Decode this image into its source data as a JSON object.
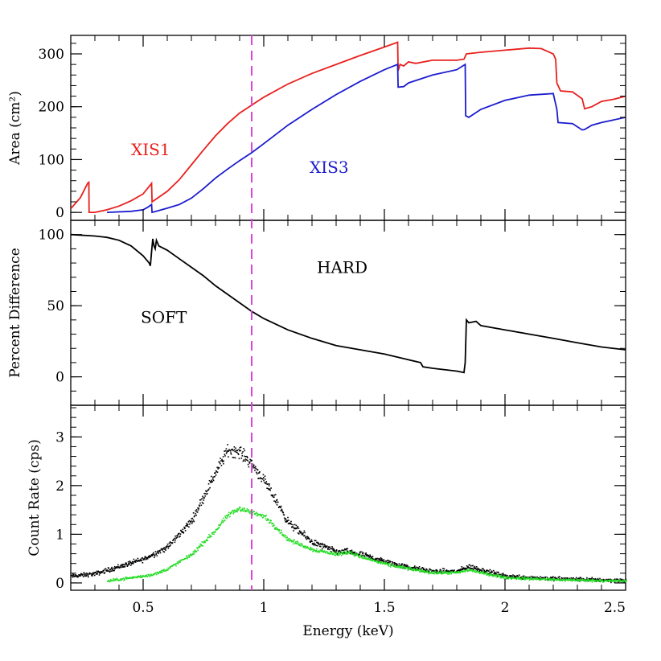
{
  "chart_data": [
    {
      "panel": "top",
      "type": "line",
      "ylabel": "Area (cm²)",
      "xlim": [
        0.2,
        2.5
      ],
      "ylim": [
        -15,
        335
      ],
      "yticks": [
        0,
        100,
        200,
        300
      ],
      "annotations": [
        {
          "text": "XIS1",
          "x": 0.45,
          "y": 108,
          "color": "#e8211e"
        },
        {
          "text": "XIS3",
          "x": 1.19,
          "y": 75,
          "color": "#1c1ccf"
        }
      ],
      "series": [
        {
          "name": "XIS1",
          "color": "#e8211e",
          "points": [
            [
              0.2,
              7
            ],
            [
              0.24,
              28
            ],
            [
              0.27,
              55
            ],
            [
              0.275,
              57
            ],
            [
              0.276,
              0
            ],
            [
              0.3,
              0
            ],
            [
              0.35,
              5
            ],
            [
              0.4,
              12
            ],
            [
              0.45,
              22
            ],
            [
              0.5,
              35
            ],
            [
              0.53,
              52
            ],
            [
              0.535,
              55
            ],
            [
              0.537,
              20
            ],
            [
              0.55,
              24
            ],
            [
              0.6,
              40
            ],
            [
              0.65,
              62
            ],
            [
              0.7,
              90
            ],
            [
              0.75,
              118
            ],
            [
              0.8,
              145
            ],
            [
              0.85,
              168
            ],
            [
              0.9,
              188
            ],
            [
              0.95,
              203
            ],
            [
              1.0,
              218
            ],
            [
              1.1,
              243
            ],
            [
              1.2,
              263
            ],
            [
              1.3,
              280
            ],
            [
              1.4,
              297
            ],
            [
              1.5,
              313
            ],
            [
              1.555,
              322
            ],
            [
              1.557,
              268
            ],
            [
              1.565,
              280
            ],
            [
              1.58,
              277
            ],
            [
              1.6,
              285
            ],
            [
              1.63,
              282
            ],
            [
              1.7,
              288
            ],
            [
              1.8,
              288
            ],
            [
              1.83,
              290
            ],
            [
              1.84,
              300
            ],
            [
              1.9,
              303
            ],
            [
              2.0,
              307
            ],
            [
              2.1,
              311
            ],
            [
              2.15,
              310
            ],
            [
              2.2,
              300
            ],
            [
              2.21,
              290
            ],
            [
              2.215,
              245
            ],
            [
              2.23,
              230
            ],
            [
              2.28,
              228
            ],
            [
              2.32,
              215
            ],
            [
              2.33,
              196
            ],
            [
              2.36,
              200
            ],
            [
              2.4,
              210
            ],
            [
              2.45,
              214
            ],
            [
              2.5,
              220
            ]
          ]
        },
        {
          "name": "XIS3",
          "color": "#1c1ccf",
          "points": [
            [
              0.35,
              0
            ],
            [
              0.45,
              2
            ],
            [
              0.5,
              5
            ],
            [
              0.52,
              10
            ],
            [
              0.535,
              15
            ],
            [
              0.537,
              0
            ],
            [
              0.56,
              3
            ],
            [
              0.6,
              8
            ],
            [
              0.65,
              15
            ],
            [
              0.7,
              27
            ],
            [
              0.75,
              45
            ],
            [
              0.8,
              65
            ],
            [
              0.85,
              82
            ],
            [
              0.9,
              98
            ],
            [
              0.95,
              113
            ],
            [
              1.0,
              130
            ],
            [
              1.1,
              165
            ],
            [
              1.2,
              195
            ],
            [
              1.3,
              223
            ],
            [
              1.4,
              248
            ],
            [
              1.5,
              270
            ],
            [
              1.555,
              280
            ],
            [
              1.557,
              237
            ],
            [
              1.58,
              238
            ],
            [
              1.6,
              245
            ],
            [
              1.7,
              260
            ],
            [
              1.8,
              270
            ],
            [
              1.835,
              280
            ],
            [
              1.837,
              183
            ],
            [
              1.85,
              180
            ],
            [
              1.9,
              195
            ],
            [
              2.0,
              212
            ],
            [
              2.1,
              222
            ],
            [
              2.2,
              225
            ],
            [
              2.215,
              195
            ],
            [
              2.22,
              170
            ],
            [
              2.28,
              168
            ],
            [
              2.32,
              156
            ],
            [
              2.33,
              157
            ],
            [
              2.36,
              165
            ],
            [
              2.4,
              170
            ],
            [
              2.5,
              180
            ]
          ]
        }
      ]
    },
    {
      "panel": "middle",
      "type": "line",
      "ylabel": "Percent Difference",
      "xlim": [
        0.2,
        2.5
      ],
      "ylim": [
        -20,
        110
      ],
      "yticks": [
        0,
        50,
        100
      ],
      "annotations": [
        {
          "text": "HARD",
          "x": 1.22,
          "y": 73,
          "color": "#000000"
        },
        {
          "text": "SOFT",
          "x": 0.49,
          "y": 38,
          "color": "#000000"
        }
      ],
      "series": [
        {
          "color": "#000000",
          "points": [
            [
              0.2,
              100
            ],
            [
              0.3,
              99
            ],
            [
              0.35,
              98
            ],
            [
              0.4,
              96
            ],
            [
              0.45,
              92
            ],
            [
              0.5,
              85
            ],
            [
              0.525,
              80
            ],
            [
              0.53,
              78
            ],
            [
              0.535,
              88
            ],
            [
              0.54,
              97
            ],
            [
              0.545,
              92
            ],
            [
              0.55,
              90
            ],
            [
              0.555,
              96
            ],
            [
              0.565,
              92
            ],
            [
              0.6,
              89
            ],
            [
              0.65,
              83
            ],
            [
              0.7,
              77
            ],
            [
              0.75,
              71
            ],
            [
              0.8,
              64
            ],
            [
              0.85,
              58
            ],
            [
              0.9,
              52
            ],
            [
              0.95,
              46
            ],
            [
              1.0,
              41
            ],
            [
              1.1,
              33
            ],
            [
              1.2,
              27
            ],
            [
              1.3,
              22
            ],
            [
              1.4,
              19
            ],
            [
              1.5,
              16
            ],
            [
              1.6,
              12
            ],
            [
              1.65,
              10
            ],
            [
              1.66,
              7
            ],
            [
              1.7,
              6
            ],
            [
              1.8,
              4
            ],
            [
              1.83,
              3
            ],
            [
              1.835,
              10
            ],
            [
              1.84,
              40
            ],
            [
              1.85,
              38
            ],
            [
              1.88,
              39
            ],
            [
              1.9,
              36
            ],
            [
              2.0,
              33
            ],
            [
              2.1,
              30
            ],
            [
              2.2,
              27
            ],
            [
              2.3,
              24
            ],
            [
              2.4,
              21
            ],
            [
              2.5,
              19
            ]
          ]
        }
      ]
    },
    {
      "panel": "bottom",
      "type": "scatter",
      "ylabel": "Count Rate (cps)",
      "xlabel": "Energy (keV)",
      "xlim": [
        0.2,
        2.5
      ],
      "ylim": [
        -0.15,
        3.65
      ],
      "yticks": [
        0,
        1,
        2,
        3
      ],
      "xticks": [
        0.5,
        1,
        1.5,
        2,
        2.5
      ],
      "xtick_labels": [
        "0.5",
        "1",
        "1.5",
        "2",
        "2.5"
      ],
      "series": [
        {
          "color": "#000000",
          "curve": [
            [
              0.2,
              0.15
            ],
            [
              0.3,
              0.2
            ],
            [
              0.4,
              0.35
            ],
            [
              0.5,
              0.5
            ],
            [
              0.6,
              0.75
            ],
            [
              0.7,
              1.3
            ],
            [
              0.75,
              1.8
            ],
            [
              0.8,
              2.3
            ],
            [
              0.85,
              2.75
            ],
            [
              0.9,
              2.7
            ],
            [
              0.95,
              2.45
            ],
            [
              1.0,
              2.1
            ],
            [
              1.05,
              1.7
            ],
            [
              1.1,
              1.25
            ],
            [
              1.2,
              0.85
            ],
            [
              1.3,
              0.65
            ],
            [
              1.35,
              0.65
            ],
            [
              1.4,
              0.6
            ],
            [
              1.5,
              0.45
            ],
            [
              1.6,
              0.33
            ],
            [
              1.7,
              0.25
            ],
            [
              1.8,
              0.25
            ],
            [
              1.85,
              0.35
            ],
            [
              1.9,
              0.28
            ],
            [
              2.0,
              0.15
            ],
            [
              2.2,
              0.1
            ],
            [
              2.5,
              0.06
            ]
          ],
          "spread": 0.14
        },
        {
          "color": "#22dd22",
          "curve": [
            [
              0.35,
              0.05
            ],
            [
              0.45,
              0.12
            ],
            [
              0.5,
              0.15
            ],
            [
              0.55,
              0.2
            ],
            [
              0.6,
              0.3
            ],
            [
              0.7,
              0.6
            ],
            [
              0.8,
              1.1
            ],
            [
              0.85,
              1.4
            ],
            [
              0.9,
              1.55
            ],
            [
              0.95,
              1.45
            ],
            [
              1.0,
              1.38
            ],
            [
              1.05,
              1.15
            ],
            [
              1.1,
              0.9
            ],
            [
              1.2,
              0.7
            ],
            [
              1.3,
              0.6
            ],
            [
              1.35,
              0.65
            ],
            [
              1.4,
              0.55
            ],
            [
              1.5,
              0.4
            ],
            [
              1.6,
              0.3
            ],
            [
              1.7,
              0.22
            ],
            [
              1.8,
              0.22
            ],
            [
              1.85,
              0.28
            ],
            [
              1.9,
              0.22
            ],
            [
              2.0,
              0.12
            ],
            [
              2.2,
              0.08
            ],
            [
              2.5,
              0.05
            ]
          ],
          "spread": 0.09
        }
      ]
    }
  ],
  "marker_line": {
    "x": 0.95,
    "color": "#dd44dd"
  }
}
